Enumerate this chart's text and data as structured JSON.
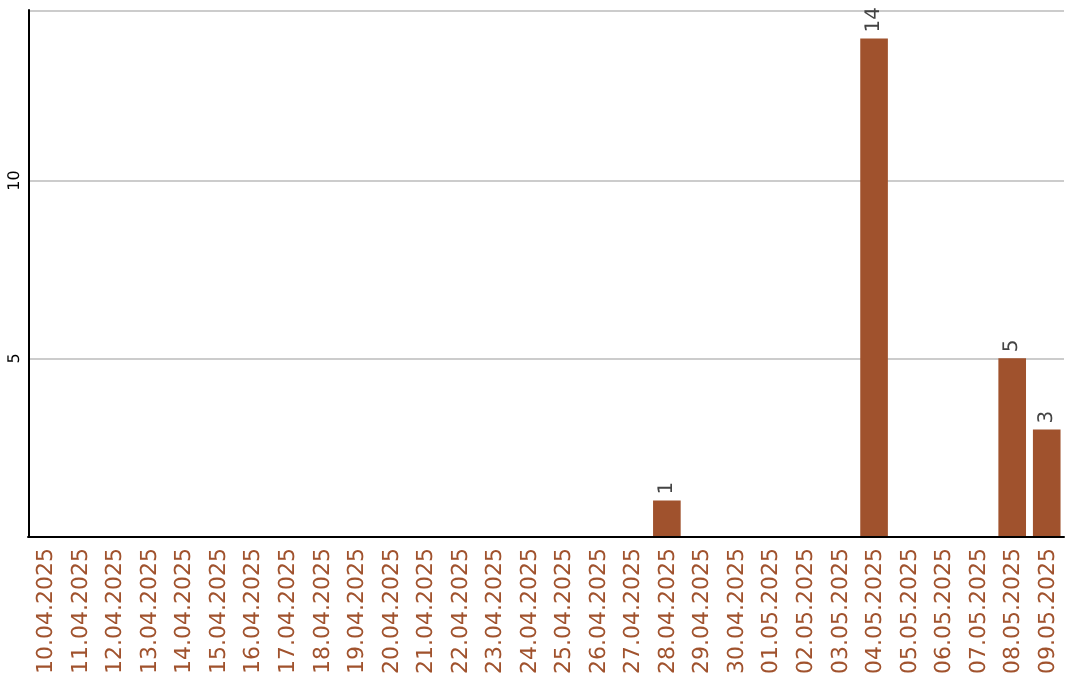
{
  "chart_data": {
    "type": "bar",
    "categories": [
      "10.04.2025",
      "11.04.2025",
      "12.04.2025",
      "13.04.2025",
      "14.04.2025",
      "15.04.2025",
      "16.04.2025",
      "17.04.2025",
      "18.04.2025",
      "19.04.2025",
      "20.04.2025",
      "21.04.2025",
      "22.04.2025",
      "23.04.2025",
      "24.04.2025",
      "25.04.2025",
      "26.04.2025",
      "27.04.2025",
      "28.04.2025",
      "29.04.2025",
      "30.04.2025",
      "01.05.2025",
      "02.05.2025",
      "03.05.2025",
      "04.05.2025",
      "05.05.2025",
      "06.05.2025",
      "07.05.2025",
      "08.05.2025",
      "09.05.2025"
    ],
    "values": [
      0,
      0,
      0,
      0,
      0,
      0,
      0,
      0,
      0,
      0,
      0,
      0,
      0,
      0,
      0,
      0,
      0,
      0,
      1,
      0,
      0,
      0,
      0,
      0,
      14,
      0,
      0,
      0,
      5,
      3
    ],
    "value_labels": [
      null,
      null,
      null,
      null,
      null,
      null,
      null,
      null,
      null,
      null,
      null,
      null,
      null,
      null,
      null,
      null,
      null,
      null,
      "1",
      null,
      null,
      null,
      null,
      null,
      "14",
      null,
      null,
      null,
      "5",
      "3"
    ],
    "color": "#a0522d",
    "ylim": [
      0,
      14.8
    ],
    "yticks": [
      5,
      10
    ],
    "grid": "y"
  }
}
